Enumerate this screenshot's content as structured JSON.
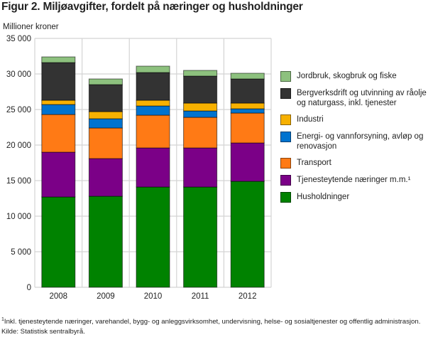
{
  "title": "Figur 2. Miljøavgifter, fordelt på næringer og husholdninger",
  "chart_data": {
    "type": "bar",
    "stacked": true,
    "title": "Figur 2. Miljøavgifter, fordelt på næringer og husholdninger",
    "ylabel": "Millioner kroner",
    "xlabel": "",
    "ylim": [
      0,
      35000
    ],
    "yticks": [
      "0",
      "5 000",
      "10 000",
      "15 000",
      "20 000",
      "25 000",
      "30 000",
      "35 000"
    ],
    "grid": true,
    "legend_position": "right",
    "categories": [
      "2008",
      "2009",
      "2010",
      "2011",
      "2012"
    ],
    "series": [
      {
        "name": "Husholdninger",
        "color": "#008200",
        "values": [
          12700,
          12800,
          14100,
          14100,
          14900
        ]
      },
      {
        "name": "Tjenesteytende næringer m.m.¹",
        "color": "#7b0087",
        "values": [
          6300,
          5300,
          5500,
          5500,
          5400
        ]
      },
      {
        "name": "Transport",
        "color": "#ff7a15",
        "values": [
          5300,
          4300,
          4600,
          4300,
          4200
        ]
      },
      {
        "name": "Energi- og vannforsyning, avløp og renovasjon",
        "color": "#0073cf",
        "values": [
          1400,
          1300,
          1300,
          900,
          600
        ]
      },
      {
        "name": "Industri",
        "color": "#f7b100",
        "values": [
          600,
          1000,
          800,
          1100,
          800
        ]
      },
      {
        "name": "Bergverksdrift og utvinning av råolje og naturgass, inkl. tjenester",
        "color": "#333333",
        "values": [
          5300,
          3800,
          3900,
          3800,
          3400
        ]
      },
      {
        "name": "Jordbruk, skogbruk og fiske",
        "color": "#8dc17e",
        "values": [
          800,
          800,
          900,
          800,
          800
        ]
      }
    ]
  },
  "legend_order": [
    6,
    5,
    4,
    3,
    2,
    1,
    0
  ],
  "footnotes": {
    "note": "Inkl. tjenesteytende næringer, varehandel, bygg- og anleggsvirksomhet, undervisning, helse- og sosialtjenester og offentlig administrasjon.",
    "note_mark": "1",
    "source": "Kilde: Statistisk sentralbyrå."
  }
}
